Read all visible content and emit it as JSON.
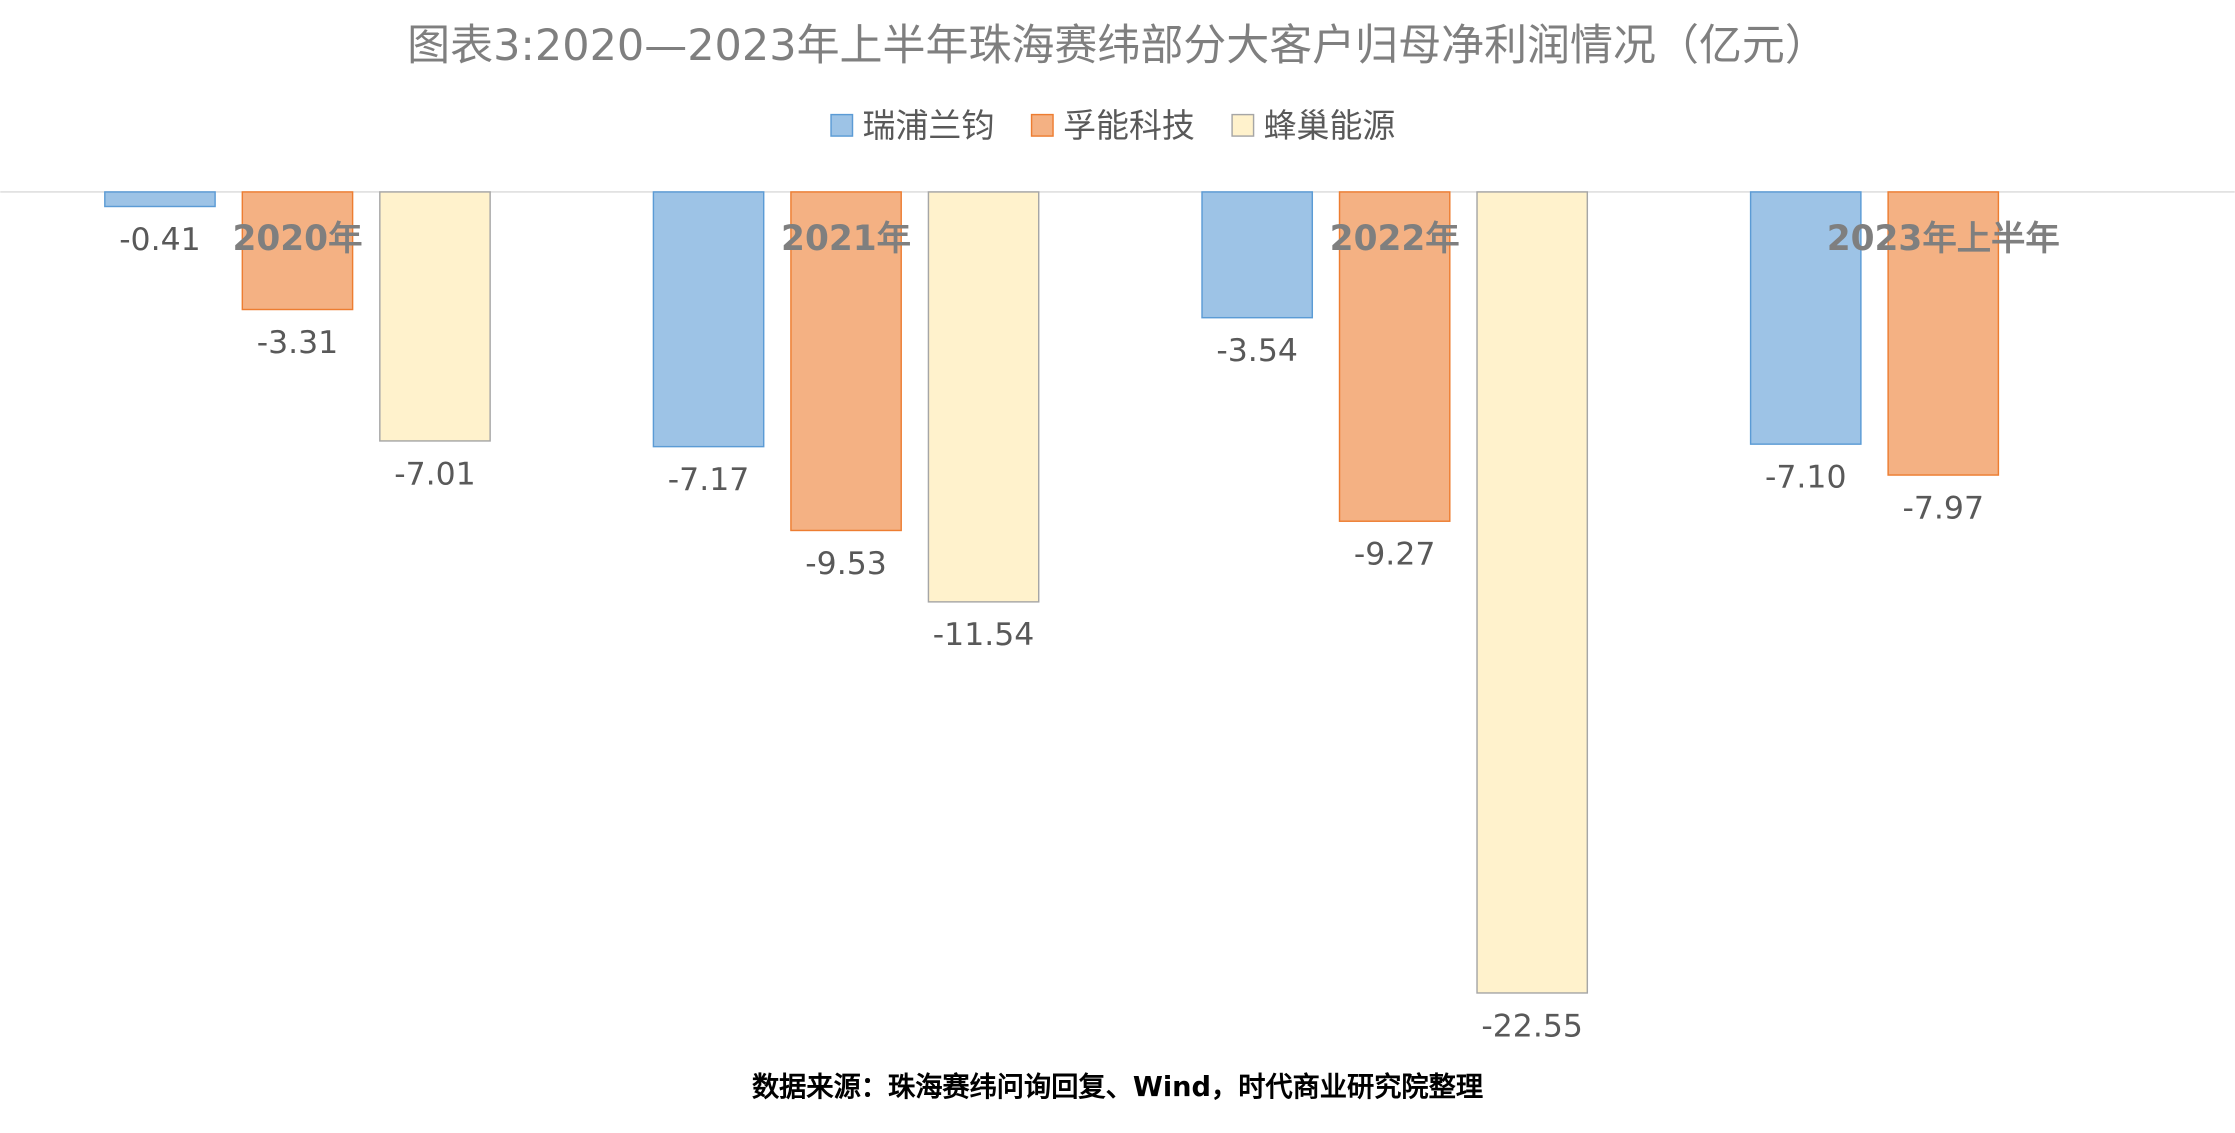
{
  "chart_data": {
    "type": "bar",
    "title": "图表3:2020—2023年上半年珠海赛纬部分大客户归母净利润情况（亿元）",
    "categories": [
      "2020年",
      "2021年",
      "2022年",
      "2023年上半年"
    ],
    "series": [
      {
        "name": "瑞浦兰钧",
        "color": "#9dc3e6",
        "values": [
          -0.41,
          -7.17,
          -3.54,
          -7.1
        ],
        "value_labels": [
          "-0.41",
          "-7.17",
          "-3.54",
          "-7.10"
        ]
      },
      {
        "name": "孚能科技",
        "color": "#f4b183",
        "values": [
          -3.31,
          -9.53,
          -9.27,
          -7.97
        ],
        "value_labels": [
          "-3.31",
          "-9.53",
          "-9.27",
          "-7.97"
        ]
      },
      {
        "name": "蜂巢能源",
        "color": "#fff2cc",
        "values": [
          -7.01,
          -11.54,
          -22.55,
          null
        ],
        "value_labels": [
          "-7.01",
          "-11.54",
          "-22.55",
          null
        ]
      }
    ],
    "ylim": [
      -25,
      0
    ],
    "legend": "top",
    "source": "数据来源：珠海赛纬问询回复、Wind，时代商业研究院整理"
  }
}
